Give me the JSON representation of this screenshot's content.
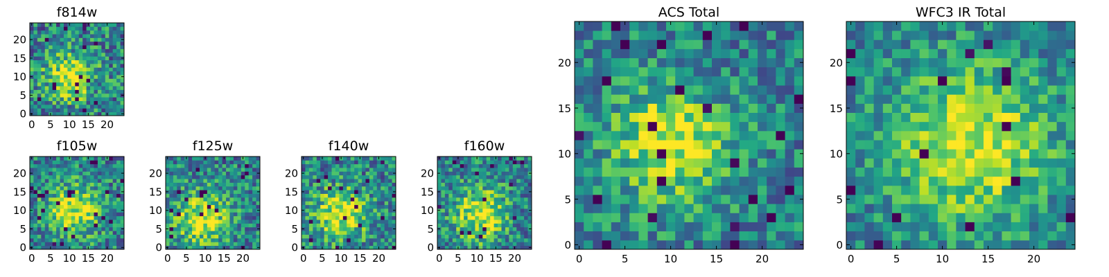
{
  "figure": {
    "type": "image-panels",
    "colormap": "viridis"
  },
  "chart_data": [
    {
      "type": "heatmap",
      "title": "f814w",
      "xticks": [
        "0",
        "5",
        "10",
        "15",
        "20"
      ],
      "yticks": [
        "0",
        "5",
        "10",
        "15",
        "20"
      ],
      "xlim": [
        -0.5,
        24.5
      ],
      "ylim": [
        -0.5,
        24.5
      ],
      "center": [
        10,
        10
      ],
      "spread": 4.5,
      "noise": 0.28,
      "seed": 11
    },
    {
      "type": "heatmap",
      "title": "f105w",
      "xticks": [
        "0",
        "5",
        "10",
        "15",
        "20"
      ],
      "yticks": [
        "0",
        "5",
        "10",
        "15",
        "20"
      ],
      "xlim": [
        -0.5,
        24.5
      ],
      "ylim": [
        -0.5,
        24.5
      ],
      "center": [
        11,
        10
      ],
      "spread": 5.0,
      "noise": 0.26,
      "seed": 23
    },
    {
      "type": "heatmap",
      "title": "f125w",
      "xticks": [
        "0",
        "5",
        "10",
        "15",
        "20"
      ],
      "yticks": [
        "0",
        "5",
        "10",
        "15",
        "20"
      ],
      "xlim": [
        -0.5,
        24.5
      ],
      "ylim": [
        -0.5,
        24.5
      ],
      "center": [
        9,
        8
      ],
      "spread": 5.0,
      "noise": 0.26,
      "seed": 37
    },
    {
      "type": "heatmap",
      "title": "f140w",
      "xticks": [
        "0",
        "5",
        "10",
        "15",
        "20"
      ],
      "yticks": [
        "0",
        "5",
        "10",
        "15",
        "20"
      ],
      "xlim": [
        -0.5,
        24.5
      ],
      "ylim": [
        -0.5,
        24.5
      ],
      "center": [
        10,
        9
      ],
      "spread": 5.0,
      "noise": 0.26,
      "seed": 41
    },
    {
      "type": "heatmap",
      "title": "f160w",
      "xticks": [
        "0",
        "5",
        "10",
        "15",
        "20"
      ],
      "yticks": [
        "0",
        "5",
        "10",
        "15",
        "20"
      ],
      "xlim": [
        -0.5,
        24.5
      ],
      "ylim": [
        -0.5,
        24.5
      ],
      "center": [
        11,
        9
      ],
      "spread": 5.0,
      "noise": 0.26,
      "seed": 53
    },
    {
      "type": "heatmap",
      "title": "ACS Total",
      "xticks": [
        "0",
        "5",
        "10",
        "15",
        "20"
      ],
      "yticks": [
        "0",
        "5",
        "10",
        "15",
        "20"
      ],
      "xlim": [
        -0.5,
        24.5
      ],
      "ylim": [
        -0.5,
        24.5
      ],
      "center": [
        10,
        11
      ],
      "spread": 4.5,
      "noise": 0.22,
      "seed": 67
    },
    {
      "type": "heatmap",
      "title": "WFC3 IR Total",
      "xticks": [
        "0",
        "5",
        "10",
        "15",
        "20"
      ],
      "yticks": [
        "0",
        "5",
        "10",
        "15",
        "20"
      ],
      "xlim": [
        -0.5,
        24.5
      ],
      "ylim": [
        -0.5,
        24.5
      ],
      "center": [
        13,
        11
      ],
      "spread": 6.0,
      "noise": 0.2,
      "seed": 79
    }
  ]
}
